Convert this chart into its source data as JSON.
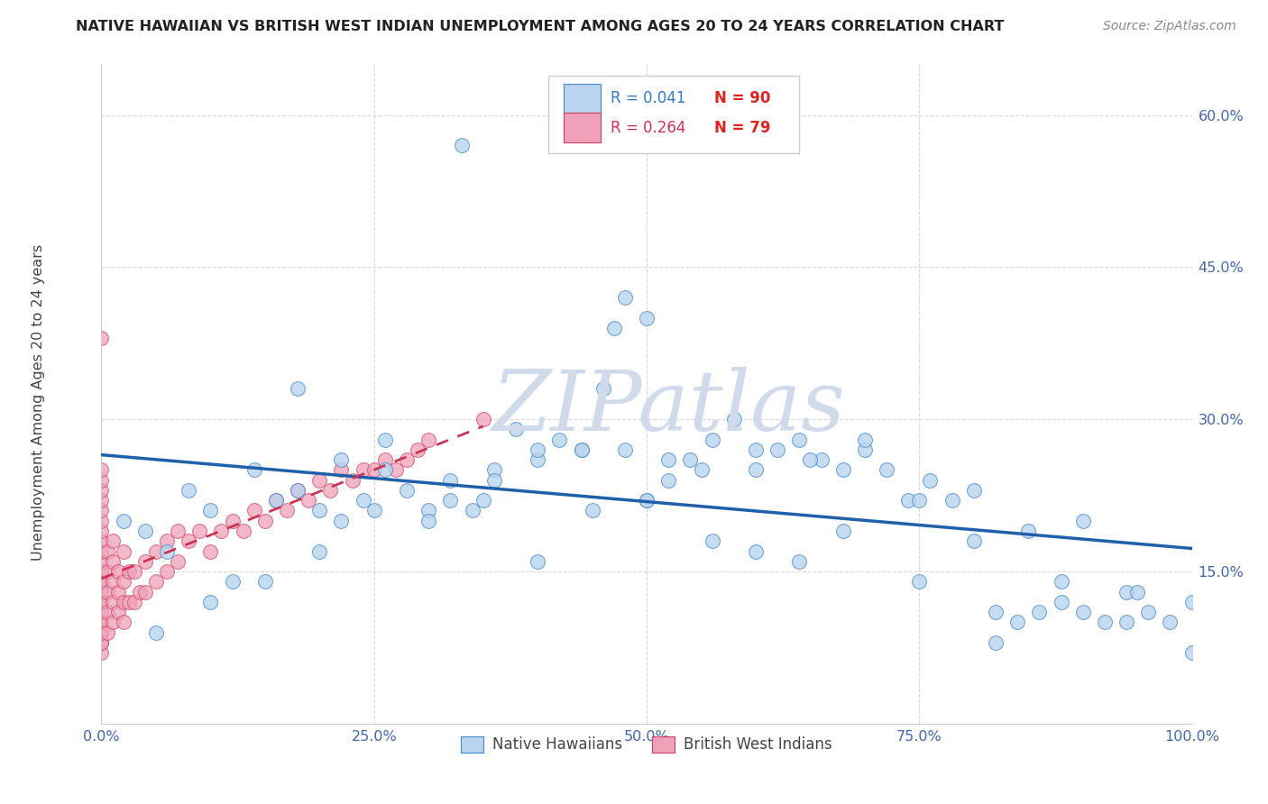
{
  "title": "NATIVE HAWAIIAN VS BRITISH WEST INDIAN UNEMPLOYMENT AMONG AGES 20 TO 24 YEARS CORRELATION CHART",
  "source": "Source: ZipAtlas.com",
  "ylabel": "Unemployment Among Ages 20 to 24 years",
  "xlim": [
    0,
    1.0
  ],
  "ylim": [
    0,
    0.65
  ],
  "blue_R": 0.041,
  "blue_N": 90,
  "pink_R": 0.264,
  "pink_N": 79,
  "legend_label_blue": "Native Hawaiians",
  "legend_label_pink": "British West Indians",
  "blue_fill": "#b8d4ee",
  "pink_fill": "#f0a0b8",
  "blue_edge": "#4488cc",
  "pink_edge": "#d04060",
  "blue_line": "#2060aa",
  "pink_line": "#cc3355",
  "watermark_color": "#d0daea",
  "grid_color": "#d8d8d8",
  "tick_color": "#4466aa",
  "title_color": "#222222",
  "source_color": "#888888",
  "legend_r_blue": "#3377cc",
  "legend_r_pink": "#cc3355",
  "legend_n_blue": "#cc3333",
  "legend_n_pink": "#cc3333",
  "blue_x": [
    0.02,
    0.04,
    0.06,
    0.08,
    0.1,
    0.12,
    0.14,
    0.16,
    0.18,
    0.2,
    0.22,
    0.24,
    0.26,
    0.28,
    0.3,
    0.32,
    0.34,
    0.36,
    0.38,
    0.4,
    0.42,
    0.44,
    0.46,
    0.48,
    0.5,
    0.52,
    0.54,
    0.56,
    0.58,
    0.6,
    0.62,
    0.64,
    0.66,
    0.68,
    0.7,
    0.72,
    0.74,
    0.76,
    0.78,
    0.8,
    0.82,
    0.84,
    0.86,
    0.88,
    0.9,
    0.92,
    0.94,
    0.96,
    0.98,
    1.0,
    0.05,
    0.1,
    0.15,
    0.2,
    0.25,
    0.3,
    0.35,
    0.4,
    0.45,
    0.5,
    0.55,
    0.6,
    0.65,
    0.7,
    0.75,
    0.8,
    0.85,
    0.9,
    0.95,
    0.48,
    0.5,
    0.33,
    0.47,
    0.18,
    0.22,
    0.26,
    0.32,
    0.36,
    0.4,
    0.44,
    0.52,
    0.56,
    0.6,
    0.64,
    0.68,
    0.75,
    0.82,
    0.88,
    0.94,
    1.0
  ],
  "blue_y": [
    0.2,
    0.19,
    0.17,
    0.23,
    0.21,
    0.14,
    0.25,
    0.22,
    0.23,
    0.21,
    0.2,
    0.22,
    0.28,
    0.23,
    0.21,
    0.22,
    0.21,
    0.25,
    0.29,
    0.26,
    0.28,
    0.27,
    0.33,
    0.27,
    0.22,
    0.24,
    0.26,
    0.28,
    0.3,
    0.25,
    0.27,
    0.28,
    0.26,
    0.25,
    0.27,
    0.25,
    0.22,
    0.24,
    0.22,
    0.23,
    0.11,
    0.1,
    0.11,
    0.12,
    0.11,
    0.1,
    0.13,
    0.11,
    0.1,
    0.12,
    0.09,
    0.12,
    0.14,
    0.17,
    0.21,
    0.2,
    0.22,
    0.16,
    0.21,
    0.22,
    0.25,
    0.27,
    0.26,
    0.28,
    0.22,
    0.18,
    0.19,
    0.2,
    0.13,
    0.42,
    0.4,
    0.57,
    0.39,
    0.33,
    0.26,
    0.25,
    0.24,
    0.24,
    0.27,
    0.27,
    0.26,
    0.18,
    0.17,
    0.16,
    0.19,
    0.14,
    0.08,
    0.14,
    0.1,
    0.07
  ],
  "pink_x": [
    0.0,
    0.0,
    0.0,
    0.0,
    0.0,
    0.0,
    0.0,
    0.0,
    0.0,
    0.0,
    0.0,
    0.0,
    0.0,
    0.0,
    0.0,
    0.0,
    0.0,
    0.0,
    0.0,
    0.0,
    0.0,
    0.0,
    0.0,
    0.0,
    0.0,
    0.005,
    0.005,
    0.005,
    0.005,
    0.005,
    0.01,
    0.01,
    0.01,
    0.01,
    0.01,
    0.015,
    0.015,
    0.015,
    0.02,
    0.02,
    0.02,
    0.02,
    0.025,
    0.025,
    0.03,
    0.03,
    0.035,
    0.04,
    0.04,
    0.05,
    0.05,
    0.06,
    0.06,
    0.07,
    0.07,
    0.08,
    0.09,
    0.1,
    0.11,
    0.12,
    0.13,
    0.14,
    0.15,
    0.16,
    0.17,
    0.18,
    0.19,
    0.2,
    0.21,
    0.22,
    0.23,
    0.24,
    0.25,
    0.26,
    0.27,
    0.28,
    0.29,
    0.3,
    0.35
  ],
  "pink_y": [
    0.07,
    0.08,
    0.09,
    0.1,
    0.11,
    0.12,
    0.13,
    0.14,
    0.15,
    0.16,
    0.17,
    0.18,
    0.19,
    0.2,
    0.21,
    0.22,
    0.23,
    0.24,
    0.25,
    0.1,
    0.12,
    0.14,
    0.08,
    0.09,
    0.38,
    0.09,
    0.11,
    0.13,
    0.15,
    0.17,
    0.1,
    0.12,
    0.14,
    0.16,
    0.18,
    0.11,
    0.13,
    0.15,
    0.1,
    0.12,
    0.14,
    0.17,
    0.12,
    0.15,
    0.12,
    0.15,
    0.13,
    0.13,
    0.16,
    0.14,
    0.17,
    0.15,
    0.18,
    0.16,
    0.19,
    0.18,
    0.19,
    0.17,
    0.19,
    0.2,
    0.19,
    0.21,
    0.2,
    0.22,
    0.21,
    0.23,
    0.22,
    0.24,
    0.23,
    0.25,
    0.24,
    0.25,
    0.25,
    0.26,
    0.25,
    0.26,
    0.27,
    0.28,
    0.3
  ]
}
